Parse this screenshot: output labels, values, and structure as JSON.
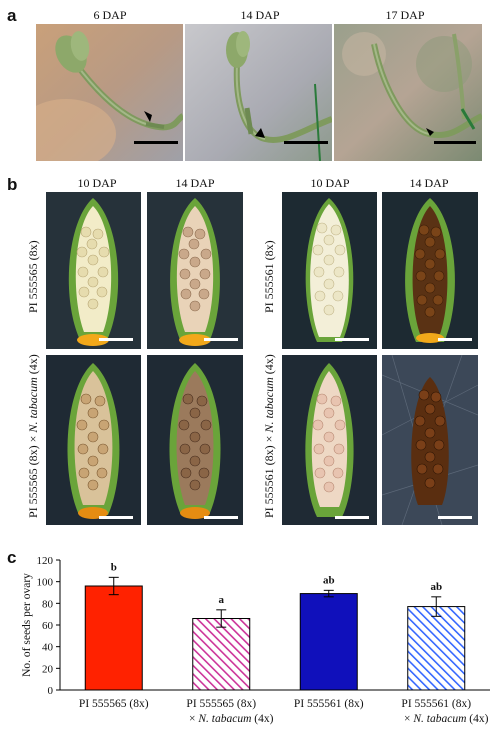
{
  "panel_a": {
    "letter": "a",
    "labels": [
      "6 DAP",
      "14 DAP",
      "17 DAP"
    ]
  },
  "panel_b": {
    "letter": "b",
    "left_group": {
      "col_labels": [
        "10 DAP",
        "14 DAP"
      ],
      "row_top": "PI 555565 (8x)",
      "row_bottom_prefix": "PI 555565 (8x) × ",
      "row_bottom_species": "N. tabacum",
      "row_bottom_suffix": " (4x)"
    },
    "right_group": {
      "col_labels": [
        "10 DAP",
        "14 DAP"
      ],
      "row_top": "PI 555561 (8x)",
      "row_bottom_prefix": "PI 555561 (8x) × ",
      "row_bottom_species": "N. tabacum",
      "row_bottom_suffix": " (4x)"
    }
  },
  "panel_c": {
    "letter": "c"
  },
  "chart_data": {
    "type": "bar",
    "ylabel": "No. of seeds per ovary",
    "ylim": [
      0,
      120
    ],
    "yticks": [
      0,
      20,
      40,
      60,
      80,
      100,
      120
    ],
    "categories": [
      {
        "line1": "PI 555565 (8x)",
        "line2_prefix": "",
        "line2_species": "",
        "line2_suffix": ""
      },
      {
        "line1": "PI 555565 (8x)",
        "line2_prefix": "× ",
        "line2_species": "N. tabacum",
        "line2_suffix": " (4x)"
      },
      {
        "line1": "PI 555561 (8x)",
        "line2_prefix": "",
        "line2_species": "",
        "line2_suffix": ""
      },
      {
        "line1": "PI 555561 (8x)",
        "line2_prefix": "× ",
        "line2_species": "N. tabacum",
        "line2_suffix": " (4x)"
      }
    ],
    "values": [
      96,
      66,
      89,
      77
    ],
    "errors": [
      8,
      8,
      3,
      9
    ],
    "significance": [
      "b",
      "a",
      "ab",
      "ab"
    ],
    "colors": [
      "#ff2200",
      "#cc3399",
      "#1010bb",
      "#3366ff"
    ],
    "hatched": [
      false,
      true,
      false,
      true
    ]
  }
}
